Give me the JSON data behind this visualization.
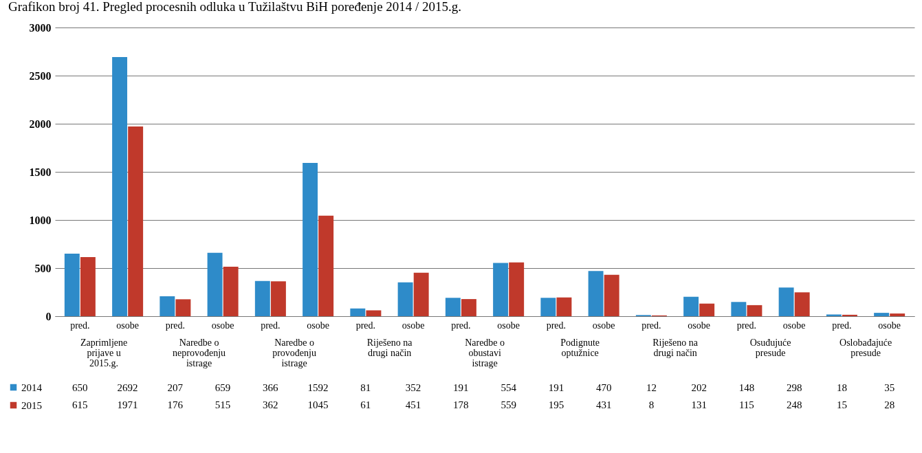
{
  "chart_data": {
    "type": "bar",
    "title": "Grafikon broj 41. Pregled procesnih odluka u Tužilaštvu BiH poređenje 2014 / 2015.g.",
    "categories": [
      "pred.",
      "osobe",
      "pred.",
      "osobe",
      "pred.",
      "osobe",
      "pred.",
      "osobe",
      "pred.",
      "osobe",
      "pred.",
      "osobe",
      "pred.",
      "osobe",
      "pred.",
      "osobe",
      "pred.",
      "osobe"
    ],
    "series": [
      {
        "name": "2014",
        "color": "#2e8bc9",
        "values": [
          650,
          2692,
          207,
          659,
          366,
          1592,
          81,
          352,
          191,
          554,
          191,
          470,
          12,
          202,
          148,
          298,
          18,
          35
        ]
      },
      {
        "name": "2015",
        "color": "#c0392b",
        "values": [
          615,
          1971,
          176,
          515,
          362,
          1045,
          61,
          451,
          178,
          559,
          195,
          431,
          8,
          131,
          115,
          248,
          15,
          28
        ]
      }
    ],
    "annotations": [
      "Zaprimljene\nprijave u\n2015.g.",
      "Naredbe o\nneprovođenju\nistrage",
      "Naredbe o\nprovođenju\nistrage",
      "Riješeno na\ndrugi način",
      "Naredbe o\nobustavi\nistrage",
      "Podignute\noptužnice",
      "Riješeno na\ndrugi način",
      "Osuđujuće\npresude",
      "Oslobađajuće\npresude"
    ],
    "ylim": [
      0,
      3000
    ],
    "yticks": [
      0,
      500,
      1000,
      1500,
      2000,
      2500,
      3000
    ],
    "grid": "y",
    "legend": "bottom left",
    "data_labels": true
  }
}
